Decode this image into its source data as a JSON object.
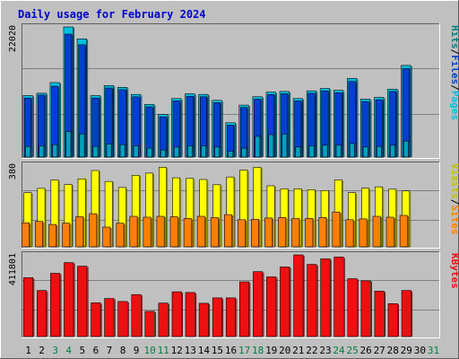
{
  "chart_data": {
    "title": "Daily usage for February 2024",
    "days": [
      "1",
      "2",
      "3",
      "4",
      "5",
      "6",
      "7",
      "8",
      "9",
      "10",
      "11",
      "12",
      "13",
      "14",
      "15",
      "16",
      "17",
      "18",
      "19",
      "20",
      "21",
      "22",
      "23",
      "24",
      "25",
      "26",
      "27",
      "28",
      "29",
      "30",
      "31"
    ],
    "weekend_days": [
      "3",
      "4",
      "10",
      "11",
      "17",
      "18",
      "24",
      "25",
      "31"
    ],
    "colors": {
      "hits": "#00c0e0",
      "files": "#0040d0",
      "pages": "#00a0c0",
      "visits": "#ffff00",
      "sites": "#ff8000",
      "kbytes": "#ee1010",
      "weekday_label": "#000000",
      "weekend_label": "#008040",
      "background": "#c0c0c0",
      "title": "#0000cc"
    },
    "panels": [
      {
        "id": "hits-files-pages",
        "type": "bar",
        "max_tick": "22020",
        "max_value": 22020,
        "legend": [
          {
            "text": "Hits",
            "color": "#008080"
          },
          {
            "text": "/",
            "color": "#000000"
          },
          {
            "text": "Files",
            "color": "#0040d0"
          },
          {
            "text": "/",
            "color": "#000000"
          },
          {
            "text": "Pages",
            "color": "#00c0e0"
          }
        ],
        "series": [
          {
            "key": "hits",
            "values": [
              10400,
              10800,
              12600,
              22020,
              20000,
              10400,
              12100,
              11800,
              10600,
              8900,
              7200,
              9900,
              10700,
              10600,
              9600,
              5800,
              8800,
              10200,
              11000,
              11100,
              9900,
              11200,
              11600,
              11300,
              13300,
              9800,
              10100,
              11500,
              15500,
              null,
              null
            ]
          },
          {
            "key": "files",
            "values": [
              10000,
              10500,
              12000,
              20800,
              19000,
              10000,
              11700,
              11400,
              10200,
              8500,
              6800,
              9500,
              10300,
              10200,
              9200,
              5400,
              8400,
              9800,
              10600,
              10700,
              9500,
              10800,
              11200,
              10900,
              12800,
              9400,
              9700,
              11100,
              15000,
              null,
              null
            ]
          },
          {
            "key": "pages",
            "values": [
              1800,
              1900,
              2100,
              4300,
              3900,
              1800,
              2200,
              2100,
              1900,
              1500,
              1200,
              1700,
              1900,
              1900,
              1700,
              1000,
              1500,
              3500,
              3800,
              3900,
              1700,
              1900,
              2000,
              2000,
              2300,
              1700,
              1800,
              2000,
              2700,
              null,
              null
            ]
          }
        ]
      },
      {
        "id": "visits-sites",
        "type": "bar",
        "max_tick": "380",
        "max_value": 380,
        "legend": [
          {
            "text": "Visits",
            "color": "#c0c000"
          },
          {
            "text": "/",
            "color": "#000000"
          },
          {
            "text": "Sites",
            "color": "#ff8000"
          }
        ],
        "series": [
          {
            "key": "visits",
            "values": [
              252,
              272,
              311,
              290,
              316,
              355,
              304,
              276,
              333,
              343,
              370,
              321,
              318,
              313,
              289,
              325,
              357,
              370,
              284,
              270,
              270,
              266,
              262,
              311,
              252,
              273,
              279,
              268,
              260,
              null,
              null
            ]
          },
          {
            "key": "sites",
            "values": [
              112,
              118,
              104,
              110,
              140,
              154,
              92,
              110,
              142,
              138,
              142,
              140,
              132,
              142,
              136,
              150,
              126,
              128,
              134,
              136,
              132,
              132,
              136,
              162,
              126,
              130,
              142,
              138,
              146,
              null,
              null
            ]
          }
        ]
      },
      {
        "id": "kbytes",
        "type": "bar",
        "max_tick": "411801",
        "max_value": 411801,
        "legend": [
          {
            "text": "KBytes",
            "color": "#ee1010"
          }
        ],
        "series": [
          {
            "key": "kbytes",
            "values": [
              297000,
              232000,
              319000,
              373000,
              355000,
              170000,
              192000,
              177000,
              212000,
              127000,
              169000,
              226000,
              222000,
              168000,
              195000,
              195000,
              276000,
              327000,
              301000,
              351000,
              411801,
              364000,
              392000,
              401000,
              292000,
              281000,
              229000,
              166000,
              232000,
              null,
              null
            ]
          }
        ]
      }
    ]
  }
}
